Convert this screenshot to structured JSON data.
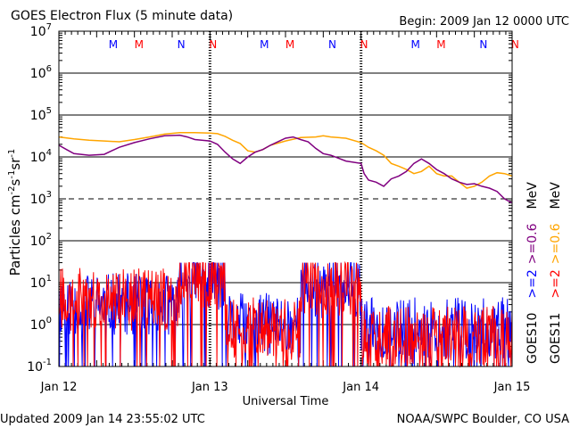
{
  "header": {
    "title": "GOES Electron Flux (5 minute data)",
    "begin": "Begin: 2009 Jan 12 0000 UTC"
  },
  "footer": {
    "updated": "Updated 2009 Jan 14 23:55:02 UTC",
    "source": "NOAA/SWPC Boulder, CO USA"
  },
  "colors": {
    "goes10_high": "#0000ff",
    "goes10_low": "#800080",
    "goes11_high": "#ff0000",
    "goes11_low": "#ffa500",
    "m_marker": "#0000ff",
    "m_marker_2": "#ff0000",
    "n_marker": "#0000ff",
    "n_marker_2": "#ff0000"
  },
  "chart_data": {
    "type": "line",
    "title": "GOES Electron Flux (5 minute data)",
    "xlabel": "Universal Time",
    "ylabel": {
      "base": "Particles cm",
      "sup1": "-2",
      "mid1": "s",
      "sup2": "-1",
      "mid2": "sr",
      "sup3": "-1"
    },
    "yscale": "log",
    "ylim": [
      0.1,
      10000000
    ],
    "xlim": [
      0,
      3
    ],
    "x_unit": "days since 2009 Jan 12 0000 UTC",
    "x_ticks": [
      {
        "x": 0,
        "label": "Jan 12"
      },
      {
        "x": 1,
        "label": "Jan 13"
      },
      {
        "x": 2,
        "label": "Jan 14"
      },
      {
        "x": 3,
        "label": "Jan 15"
      }
    ],
    "y_ticks": [
      {
        "exp": -1,
        "base": "10",
        "sup": "-1"
      },
      {
        "exp": 0,
        "base": "10",
        "sup": "0"
      },
      {
        "exp": 1,
        "base": "10",
        "sup": "1"
      },
      {
        "exp": 2,
        "base": "10",
        "sup": "2"
      },
      {
        "exp": 3,
        "base": "10",
        "sup": "3"
      },
      {
        "exp": 4,
        "base": "10",
        "sup": "4"
      },
      {
        "exp": 5,
        "base": "10",
        "sup": "5"
      },
      {
        "exp": 6,
        "base": "10",
        "sup": "6"
      },
      {
        "exp": 7,
        "base": "10",
        "sup": "7"
      }
    ],
    "gridlines": [
      {
        "value": 1000000,
        "style": "solid"
      },
      {
        "value": 100000,
        "style": "solid"
      },
      {
        "value": 10000,
        "style": "solid"
      },
      {
        "value": 1000,
        "style": "dashed"
      },
      {
        "value": 100,
        "style": "solid"
      },
      {
        "value": 10,
        "style": "solid"
      },
      {
        "value": 1,
        "style": "solid"
      }
    ],
    "day_separators": [
      1,
      2
    ],
    "local_time_markers": [
      {
        "x": 0.36,
        "label": "M",
        "color": "#0000ff"
      },
      {
        "x": 0.53,
        "label": "M",
        "color": "#ff0000"
      },
      {
        "x": 0.81,
        "label": "N",
        "color": "#0000ff"
      },
      {
        "x": 1.02,
        "label": "N",
        "color": "#ff0000"
      },
      {
        "x": 1.36,
        "label": "M",
        "color": "#0000ff"
      },
      {
        "x": 1.53,
        "label": "M",
        "color": "#ff0000"
      },
      {
        "x": 1.81,
        "label": "N",
        "color": "#0000ff"
      },
      {
        "x": 2.02,
        "label": "N",
        "color": "#ff0000"
      },
      {
        "x": 2.36,
        "label": "M",
        "color": "#0000ff"
      },
      {
        "x": 2.53,
        "label": "M",
        "color": "#ff0000"
      },
      {
        "x": 2.81,
        "label": "N",
        "color": "#0000ff"
      },
      {
        "x": 3.02,
        "label": "N",
        "color": "#ff0000"
      }
    ],
    "legend": {
      "placement": "right",
      "goes10": {
        "satellite": "GOES10",
        "high": ">=2",
        "low": ">=0.6",
        "unit": "MeV"
      },
      "goes11": {
        "satellite": "GOES11",
        "high": ">=2",
        "low": ">=0.6",
        "unit": "MeV"
      }
    },
    "series": [
      {
        "name": "GOES11 >=0.6 MeV",
        "color": "#ffa500",
        "style": "line",
        "x": [
          0,
          0.1,
          0.2,
          0.3,
          0.4,
          0.5,
          0.6,
          0.7,
          0.8,
          0.9,
          1.0,
          1.05,
          1.1,
          1.15,
          1.2,
          1.25,
          1.3,
          1.35,
          1.4,
          1.5,
          1.6,
          1.7,
          1.75,
          1.8,
          1.9,
          2.0,
          2.05,
          2.1,
          2.15,
          2.2,
          2.25,
          2.3,
          2.35,
          2.4,
          2.45,
          2.5,
          2.55,
          2.6,
          2.65,
          2.7,
          2.75,
          2.8,
          2.85,
          2.9,
          2.95,
          3.0
        ],
        "y": [
          30000,
          27000,
          25000,
          24000,
          23000,
          26000,
          30000,
          35000,
          38000,
          38000,
          37000,
          36000,
          31000,
          25000,
          21000,
          14000,
          13000,
          15000,
          19000,
          24000,
          29000,
          30000,
          32000,
          30000,
          28000,
          22000,
          17000,
          14000,
          11000,
          7000,
          6000,
          5000,
          4000,
          4500,
          6000,
          4000,
          3500,
          3500,
          2500,
          1800,
          2000,
          2500,
          3500,
          4200,
          4000,
          3500
        ]
      },
      {
        "name": "GOES10 >=0.6 MeV",
        "color": "#800080",
        "style": "line",
        "x": [
          0,
          0.05,
          0.1,
          0.2,
          0.3,
          0.35,
          0.4,
          0.5,
          0.6,
          0.7,
          0.8,
          0.85,
          0.9,
          1.0,
          1.05,
          1.1,
          1.15,
          1.2,
          1.25,
          1.3,
          1.35,
          1.4,
          1.5,
          1.55,
          1.6,
          1.65,
          1.7,
          1.75,
          1.8,
          1.9,
          2.0,
          2.02,
          2.05,
          2.1,
          2.15,
          2.2,
          2.25,
          2.3,
          2.35,
          2.4,
          2.45,
          2.5,
          2.55,
          2.6,
          2.65,
          2.7,
          2.75,
          2.8,
          2.85,
          2.9,
          2.95,
          3.0
        ],
        "y": [
          19000,
          15000,
          12000,
          11000,
          11500,
          14000,
          17000,
          22000,
          27000,
          32000,
          33000,
          30000,
          26000,
          24000,
          20000,
          13000,
          9000,
          7000,
          10000,
          13000,
          15000,
          19000,
          28000,
          30000,
          26000,
          23000,
          16000,
          12000,
          11000,
          8000,
          7000,
          4000,
          2800,
          2500,
          2000,
          3000,
          3500,
          4500,
          7000,
          9000,
          7000,
          5000,
          4000,
          3000,
          2500,
          2200,
          2300,
          2000,
          1800,
          1500,
          1000,
          800
        ]
      }
    ]
  }
}
